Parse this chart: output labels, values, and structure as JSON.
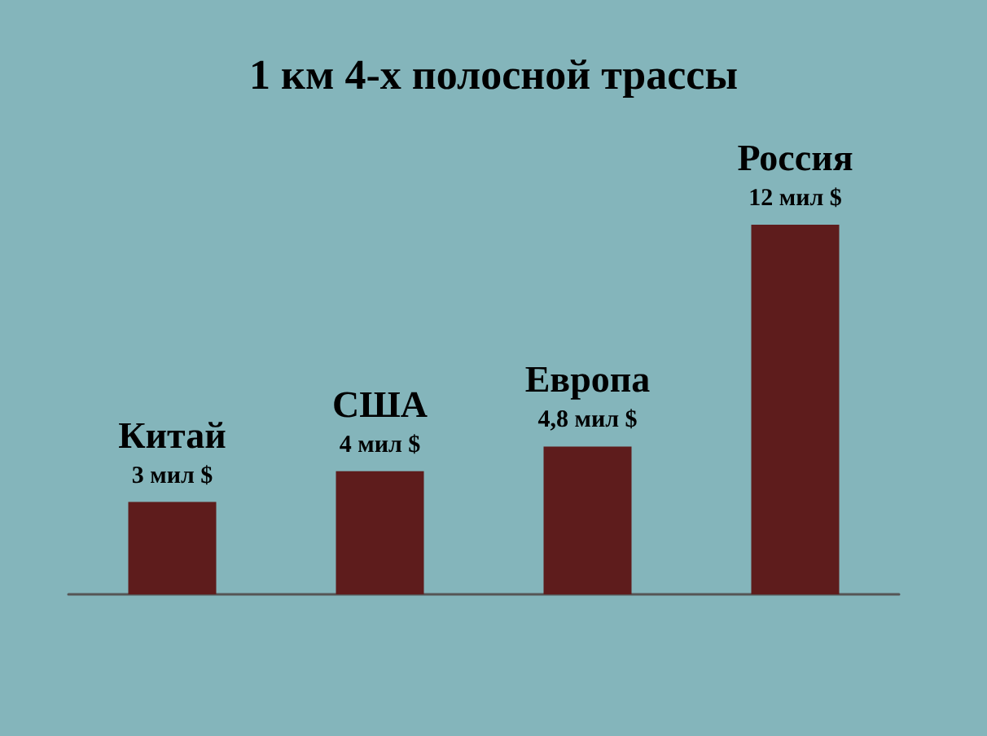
{
  "chart_data": {
    "type": "bar",
    "title": "1 км 4-х полосной трассы",
    "categories": [
      "Китай",
      "США",
      "Европа",
      "Россия"
    ],
    "values": [
      3,
      4,
      4.8,
      12
    ],
    "value_labels": [
      "3 мил $",
      "4 мил $",
      "4,8 мил $",
      "12 мил $"
    ],
    "color": "#5e1c1c",
    "tick_labels": false
  }
}
